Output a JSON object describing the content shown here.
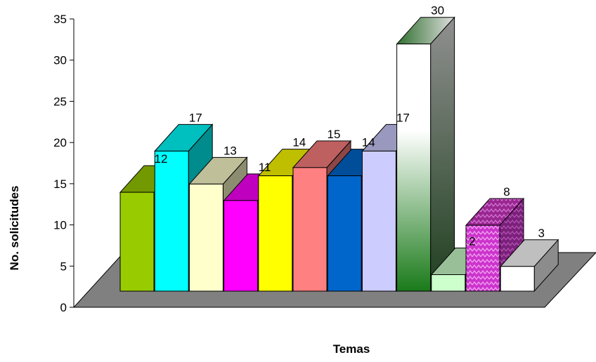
{
  "chart_data": {
    "type": "bar",
    "xlabel": "Temas",
    "ylabel": "No. solicitudes",
    "ylim": [
      0,
      35
    ],
    "yticks": [
      0,
      5,
      10,
      15,
      20,
      25,
      30,
      35
    ],
    "grid": false,
    "legend": "none",
    "bars": [
      {
        "value": 12,
        "label": "12",
        "color": "#99cc00"
      },
      {
        "value": 17,
        "label": "17",
        "color": "#00ffff"
      },
      {
        "value": 13,
        "label": "13",
        "color": "#ffffcc"
      },
      {
        "value": 11,
        "label": "11",
        "color": "#ff00ff"
      },
      {
        "value": 14,
        "label": "14",
        "color": "#ffff00"
      },
      {
        "value": 15,
        "label": "15",
        "color": "#ff8080"
      },
      {
        "value": 14,
        "label": "14",
        "color": "#0066cc"
      },
      {
        "value": 17,
        "label": "17",
        "color": "#ccccff"
      },
      {
        "value": 30,
        "label": "30",
        "color": "#1a7a1a",
        "gradient": true
      },
      {
        "value": 2,
        "label": "2",
        "color": "#ccffcc"
      },
      {
        "value": 8,
        "label": "8",
        "color": "#cc33cc",
        "pattern": "zigzag"
      },
      {
        "value": 3,
        "label": "3",
        "color": "#ffffff"
      }
    ],
    "floor_color": "#808080"
  }
}
